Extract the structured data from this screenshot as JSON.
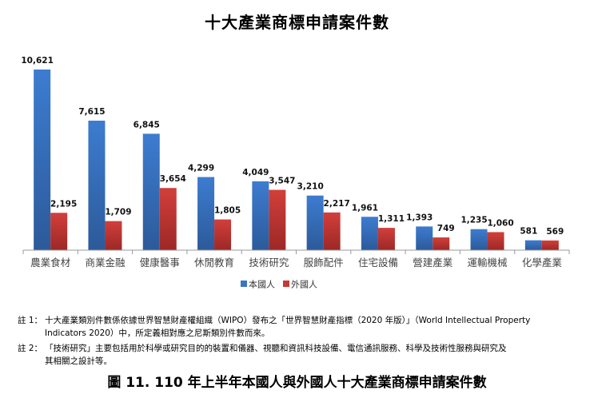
{
  "chart_data": {
    "type": "bar",
    "title": "十大產業商標申請案件數",
    "categories": [
      "農業食材",
      "商業金融",
      "健康醫事",
      "休閒教育",
      "技術研究",
      "服飾配件",
      "住宅設備",
      "營建產業",
      "運輸機械",
      "化學產業"
    ],
    "series": [
      {
        "name": "本國人",
        "color": "#3a75c4",
        "values": [
          10621,
          7615,
          6845,
          4299,
          4049,
          3210,
          1961,
          1393,
          1235,
          581
        ],
        "labels": [
          "10,621",
          "7,615",
          "6,845",
          "4,299",
          "4,049",
          "3,210",
          "1,961",
          "1,393",
          "1,235",
          "581"
        ]
      },
      {
        "name": "外國人",
        "color": "#c83a37",
        "values": [
          2195,
          1709,
          3654,
          1805,
          3547,
          2217,
          1311,
          749,
          1060,
          569
        ],
        "labels": [
          "2,195",
          "1,709",
          "3,654",
          "1,805",
          "3,547",
          "2,217",
          "1,311",
          "749",
          "1,060",
          "569"
        ]
      }
    ],
    "xlabel": "",
    "ylabel": "",
    "ylim": [
      0,
      10621
    ],
    "grid": false,
    "legend": "bottom"
  },
  "notes": [
    {
      "label": "註 1：",
      "text": "十大產業類別件數係依據世界智慧財產權組織（WIPO）發布之「世界智慧財產指標（2020 年版）」（World Intellectual Property",
      "cont": "Indicators 2020）中，所定義相對應之尼斯類別件數而來。"
    },
    {
      "label": "註 2：",
      "text": "「技術研究」主要包括用於科學或研究目的的裝置和儀器、視聽和資訊科技設備、電信通訊服務、科學及技術性服務與研究及",
      "cont": "其相關之設計等。"
    }
  ],
  "caption": "圖 11. 110 年上半年本國人與外國人十大產業商標申請案件數"
}
